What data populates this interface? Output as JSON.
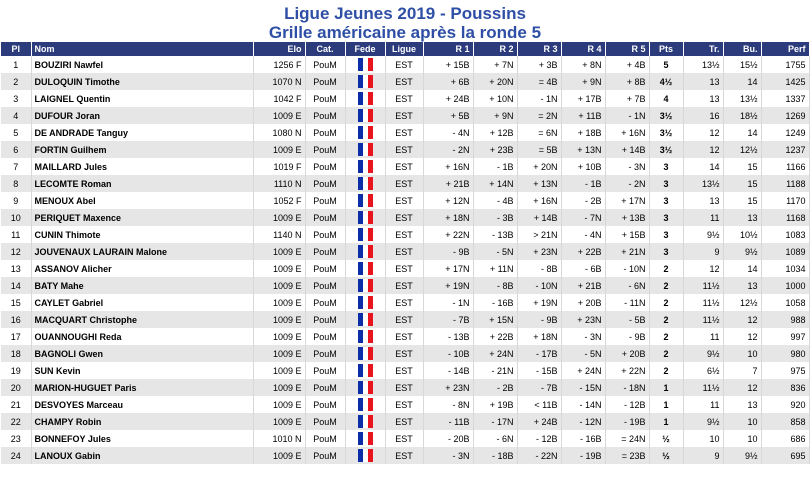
{
  "title_line1": "Ligue Jeunes 2019 - Poussins",
  "title_line2": "Grille américaine après la ronde 5",
  "headers": [
    "Pl",
    "Nom",
    "Elo",
    "Cat.",
    "Fede",
    "Ligue",
    "R 1",
    "R 2",
    "R 3",
    "R 4",
    "R 5",
    "Pts",
    "Tr.",
    "Bu.",
    "Perf"
  ],
  "rows": [
    {
      "pl": "1",
      "nom": "BOUZIRI Nawfel",
      "elo": "1256 F",
      "cat": "PouM",
      "ligue": "EST",
      "r1": "+ 15B",
      "r2": "+ 7N",
      "r3": "+ 3B",
      "r4": "+ 8N",
      "r5": "+ 4B",
      "pts": "5",
      "tr": "13½",
      "bu": "15½",
      "perf": "1755"
    },
    {
      "pl": "2",
      "nom": "DULOQUIN Timothe",
      "elo": "1070 N",
      "cat": "PouM",
      "ligue": "EST",
      "r1": "+ 6B",
      "r2": "+ 20N",
      "r3": "= 4B",
      "r4": "+ 9N",
      "r5": "+ 8B",
      "pts": "4½",
      "tr": "13",
      "bu": "14",
      "perf": "1425"
    },
    {
      "pl": "3",
      "nom": "LAIGNEL Quentin",
      "elo": "1042 F",
      "cat": "PouM",
      "ligue": "EST",
      "r1": "+ 24B",
      "r2": "+ 10N",
      "r3": "- 1N",
      "r4": "+ 17B",
      "r5": "+ 7B",
      "pts": "4",
      "tr": "13",
      "bu": "13½",
      "perf": "1337"
    },
    {
      "pl": "4",
      "nom": "DUFOUR Joran",
      "elo": "1009 E",
      "cat": "PouM",
      "ligue": "EST",
      "r1": "+ 5B",
      "r2": "+ 9N",
      "r3": "= 2N",
      "r4": "+ 11B",
      "r5": "- 1N",
      "pts": "3½",
      "tr": "16",
      "bu": "18½",
      "perf": "1269"
    },
    {
      "pl": "5",
      "nom": "DE ANDRADE Tanguy",
      "elo": "1080 N",
      "cat": "PouM",
      "ligue": "EST",
      "r1": "- 4N",
      "r2": "+ 12B",
      "r3": "= 6N",
      "r4": "+ 18B",
      "r5": "+ 16N",
      "pts": "3½",
      "tr": "12",
      "bu": "14",
      "perf": "1249"
    },
    {
      "pl": "6",
      "nom": "FORTIN Guilhem",
      "elo": "1009 E",
      "cat": "PouM",
      "ligue": "EST",
      "r1": "- 2N",
      "r2": "+ 23B",
      "r3": "= 5B",
      "r4": "+ 13N",
      "r5": "+ 14B",
      "pts": "3½",
      "tr": "12",
      "bu": "12½",
      "perf": "1237"
    },
    {
      "pl": "7",
      "nom": "MAILLARD Jules",
      "elo": "1019 F",
      "cat": "PouM",
      "ligue": "EST",
      "r1": "+ 16N",
      "r2": "- 1B",
      "r3": "+ 20N",
      "r4": "+ 10B",
      "r5": "- 3N",
      "pts": "3",
      "tr": "14",
      "bu": "15",
      "perf": "1166"
    },
    {
      "pl": "8",
      "nom": "LECOMTE Roman",
      "elo": "1110 N",
      "cat": "PouM",
      "ligue": "EST",
      "r1": "+ 21B",
      "r2": "+ 14N",
      "r3": "+ 13N",
      "r4": "- 1B",
      "r5": "- 2N",
      "pts": "3",
      "tr": "13½",
      "bu": "15",
      "perf": "1188"
    },
    {
      "pl": "9",
      "nom": "MENOUX Abel",
      "elo": "1052 F",
      "cat": "PouM",
      "ligue": "EST",
      "r1": "+ 12N",
      "r2": "- 4B",
      "r3": "+ 16N",
      "r4": "- 2B",
      "r5": "+ 17N",
      "pts": "3",
      "tr": "13",
      "bu": "15",
      "perf": "1170"
    },
    {
      "pl": "10",
      "nom": "PERIQUET Maxence",
      "elo": "1009 E",
      "cat": "PouM",
      "ligue": "EST",
      "r1": "+ 18N",
      "r2": "- 3B",
      "r3": "+ 14B",
      "r4": "- 7N",
      "r5": "+ 13B",
      "pts": "3",
      "tr": "11",
      "bu": "13",
      "perf": "1168"
    },
    {
      "pl": "11",
      "nom": "CUNIN Thimote",
      "elo": "1140 N",
      "cat": "PouM",
      "ligue": "EST",
      "r1": "+ 22N",
      "r2": "- 13B",
      "r3": "> 21N",
      "r4": "- 4N",
      "r5": "+ 15B",
      "pts": "3",
      "tr": "9½",
      "bu": "10½",
      "perf": "1083"
    },
    {
      "pl": "12",
      "nom": "JOUVENAUX LAURAIN Malone",
      "elo": "1009 E",
      "cat": "PouM",
      "ligue": "EST",
      "r1": "- 9B",
      "r2": "- 5N",
      "r3": "+ 23N",
      "r4": "+ 22B",
      "r5": "+ 21N",
      "pts": "3",
      "tr": "9",
      "bu": "9½",
      "perf": "1089"
    },
    {
      "pl": "13",
      "nom": "ASSANOV Alicher",
      "elo": "1009 E",
      "cat": "PouM",
      "ligue": "EST",
      "r1": "+ 17N",
      "r2": "+ 11N",
      "r3": "- 8B",
      "r4": "- 6B",
      "r5": "- 10N",
      "pts": "2",
      "tr": "12",
      "bu": "14",
      "perf": "1034"
    },
    {
      "pl": "14",
      "nom": "BATY Mahe",
      "elo": "1009 E",
      "cat": "PouM",
      "ligue": "EST",
      "r1": "+ 19N",
      "r2": "- 8B",
      "r3": "- 10N",
      "r4": "+ 21B",
      "r5": "- 6N",
      "pts": "2",
      "tr": "11½",
      "bu": "13",
      "perf": "1000"
    },
    {
      "pl": "15",
      "nom": "CAYLET Gabriel",
      "elo": "1009 E",
      "cat": "PouM",
      "ligue": "EST",
      "r1": "- 1N",
      "r2": "- 16B",
      "r3": "+ 19N",
      "r4": "+ 20B",
      "r5": "- 11N",
      "pts": "2",
      "tr": "11½",
      "bu": "12½",
      "perf": "1058"
    },
    {
      "pl": "16",
      "nom": "MACQUART Christophe",
      "elo": "1009 E",
      "cat": "PouM",
      "ligue": "EST",
      "r1": "- 7B",
      "r2": "+ 15N",
      "r3": "- 9B",
      "r4": "+ 23N",
      "r5": "- 5B",
      "pts": "2",
      "tr": "11½",
      "bu": "12",
      "perf": "988"
    },
    {
      "pl": "17",
      "nom": "OUANNOUGHI Reda",
      "elo": "1009 E",
      "cat": "PouM",
      "ligue": "EST",
      "r1": "- 13B",
      "r2": "+ 22B",
      "r3": "+ 18N",
      "r4": "- 3N",
      "r5": "- 9B",
      "pts": "2",
      "tr": "11",
      "bu": "12",
      "perf": "997"
    },
    {
      "pl": "18",
      "nom": "BAGNOLI Gwen",
      "elo": "1009 E",
      "cat": "PouM",
      "ligue": "EST",
      "r1": "- 10B",
      "r2": "+ 24N",
      "r3": "- 17B",
      "r4": "- 5N",
      "r5": "+ 20B",
      "pts": "2",
      "tr": "9½",
      "bu": "10",
      "perf": "980"
    },
    {
      "pl": "19",
      "nom": "SUN Kevin",
      "elo": "1009 E",
      "cat": "PouM",
      "ligue": "EST",
      "r1": "- 14B",
      "r2": "- 21N",
      "r3": "- 15B",
      "r4": "+ 24N",
      "r5": "+ 22N",
      "pts": "2",
      "tr": "6½",
      "bu": "7",
      "perf": "975"
    },
    {
      "pl": "20",
      "nom": "MARION-HUGUET Paris",
      "elo": "1009 E",
      "cat": "PouM",
      "ligue": "EST",
      "r1": "+ 23N",
      "r2": "- 2B",
      "r3": "- 7B",
      "r4": "- 15N",
      "r5": "- 18N",
      "pts": "1",
      "tr": "11½",
      "bu": "12",
      "perf": "836"
    },
    {
      "pl": "21",
      "nom": "DESVOYES Marceau",
      "elo": "1009 E",
      "cat": "PouM",
      "ligue": "EST",
      "r1": "- 8N",
      "r2": "+ 19B",
      "r3": "< 11B",
      "r4": "- 14N",
      "r5": "- 12B",
      "pts": "1",
      "tr": "11",
      "bu": "13",
      "perf": "920"
    },
    {
      "pl": "22",
      "nom": "CHAMPY Robin",
      "elo": "1009 E",
      "cat": "PouM",
      "ligue": "EST",
      "r1": "- 11B",
      "r2": "- 17N",
      "r3": "+ 24B",
      "r4": "- 12N",
      "r5": "- 19B",
      "pts": "1",
      "tr": "9½",
      "bu": "10",
      "perf": "858"
    },
    {
      "pl": "23",
      "nom": "BONNEFOY Jules",
      "elo": "1010 N",
      "cat": "PouM",
      "ligue": "EST",
      "r1": "- 20B",
      "r2": "- 6N",
      "r3": "- 12B",
      "r4": "- 16B",
      "r5": "= 24N",
      "pts": "½",
      "tr": "10",
      "bu": "10",
      "perf": "686"
    },
    {
      "pl": "24",
      "nom": "LANOUX Gabin",
      "elo": "1009 E",
      "cat": "PouM",
      "ligue": "EST",
      "r1": "- 3N",
      "r2": "- 18B",
      "r3": "- 22N",
      "r4": "- 19B",
      "r5": "= 23B",
      "pts": "½",
      "tr": "9",
      "bu": "9½",
      "perf": "695"
    }
  ]
}
